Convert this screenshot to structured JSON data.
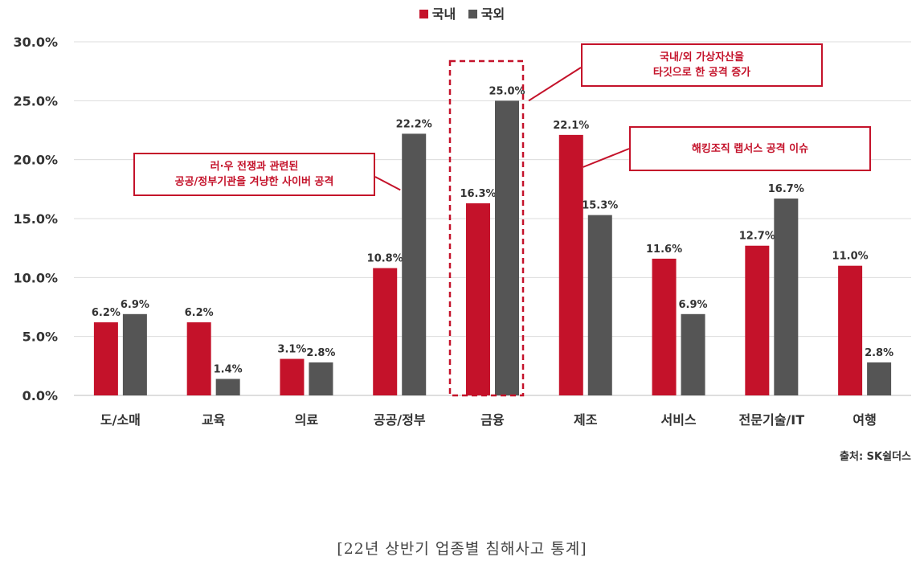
{
  "chart_data": {
    "type": "bar",
    "categories": [
      "도/소매",
      "교육",
      "의료",
      "공공/정부",
      "금융",
      "제조",
      "서비스",
      "전문기술/IT",
      "여행"
    ],
    "series": [
      {
        "name": "국내",
        "color": "#c4122a",
        "values": [
          6.2,
          6.2,
          3.1,
          10.8,
          16.3,
          22.1,
          11.6,
          12.7,
          11.0
        ]
      },
      {
        "name": "국외",
        "color": "#555555",
        "values": [
          6.9,
          1.4,
          2.8,
          22.2,
          25.0,
          15.3,
          6.9,
          16.7,
          2.8
        ]
      }
    ],
    "value_labels": [
      [
        "6.2%",
        "6.2%",
        "3.1%",
        "10.8%",
        "16.3%",
        "22.1%",
        "11.6%",
        "12.7%",
        "11.0%"
      ],
      [
        "6.9%",
        "1.4%",
        "2.8%",
        "22.2%",
        "25.0%",
        "15.3%",
        "6.9%",
        "16.7%",
        "2.8%"
      ]
    ],
    "y_ticks": [
      "0.0%",
      "5.0%",
      "10.0%",
      "15.0%",
      "20.0%",
      "25.0%",
      "30.0%"
    ],
    "ylim": [
      0,
      30
    ],
    "grid": true,
    "legend_position": "top-center",
    "highlight_category": "금융",
    "annotations": [
      {
        "text_lines": [
          "러·우 전쟁과 관련된",
          "공공/정부기관을 겨냥한 사이버 공격"
        ],
        "target_category": "공공/정부",
        "target_series": "국외"
      },
      {
        "text_lines": [
          "국내/외 가상자산을",
          "타깃으로 한 공격 증가"
        ],
        "target_category": "금융",
        "target_series": "국외"
      },
      {
        "text_lines": [
          "해킹조직 랩서스 공격 이슈"
        ],
        "target_category": "제조",
        "target_series": "국내"
      }
    ]
  },
  "source": "출처: SK쉴더스",
  "caption": "[22년 상반기 업종별 침해사고 통계]"
}
